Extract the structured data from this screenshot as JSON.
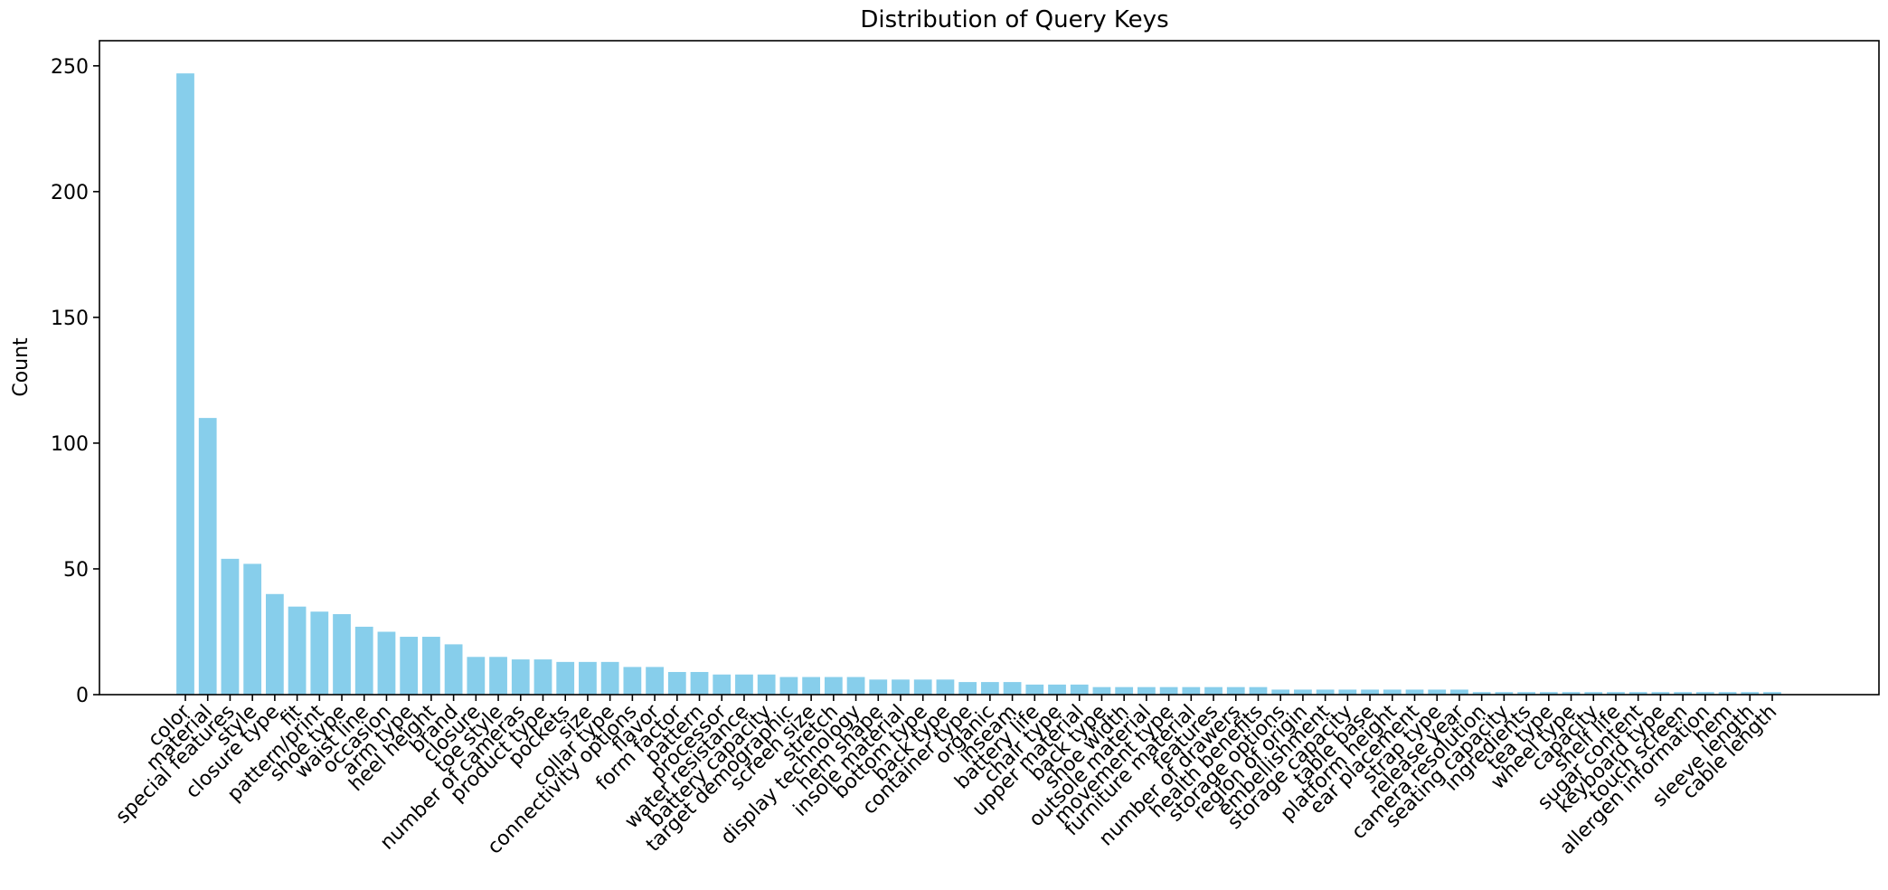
{
  "chart_data": {
    "type": "bar",
    "title": "Distribution of Query Keys",
    "xlabel": "",
    "ylabel": "Count",
    "ylim": [
      0,
      260
    ],
    "yticks": [
      0,
      50,
      100,
      150,
      200,
      250
    ],
    "grid": false,
    "bar_color": "#87CEEB",
    "categories": [
      "color",
      "material",
      "special features",
      "style",
      "closure type",
      "fit",
      "pattern/print",
      "shoe type",
      "waist line",
      "occasion",
      "arm type",
      "heel height",
      "brand",
      "closure",
      "toe style",
      "number of cameras",
      "product type",
      "pockets",
      "size",
      "collar type",
      "connectivity options",
      "flavor",
      "form factor",
      "pattern",
      "processor",
      "water resistance",
      "battery capacity",
      "target demographic",
      "screen size",
      "stretch",
      "display technology",
      "hem shape",
      "insole material",
      "bottom type",
      "back type",
      "container type",
      "organic",
      "inseam",
      "battery life",
      "chair type",
      "upper material",
      "back type",
      "shoe width",
      "outsole material",
      "movement type",
      "furniture material",
      "features",
      "number of drawers",
      "health benefits",
      "storage options",
      "region of origin",
      "embellishment",
      "storage capacity",
      "table base",
      "platform height",
      "ear placement",
      "strap type",
      "release year",
      "camera resolution",
      "seating capacity",
      "ingredients",
      "tea type",
      "wheel type",
      "capacity",
      "shelf life",
      "sugar content",
      "keyboard type",
      "touch screen",
      "allergen information",
      "hem",
      "sleeve length",
      "cable length"
    ],
    "values": [
      247,
      110,
      54,
      52,
      40,
      35,
      33,
      32,
      27,
      25,
      23,
      23,
      20,
      15,
      15,
      14,
      14,
      13,
      13,
      13,
      11,
      11,
      9,
      9,
      8,
      8,
      8,
      7,
      7,
      7,
      7,
      6,
      6,
      6,
      6,
      5,
      5,
      5,
      4,
      4,
      4,
      3,
      3,
      3,
      3,
      3,
      3,
      3,
      3,
      2,
      2,
      2,
      2,
      2,
      2,
      2,
      2,
      2,
      1,
      1,
      1,
      1,
      1,
      1,
      1,
      1,
      1,
      1,
      1,
      1,
      1,
      1
    ]
  }
}
